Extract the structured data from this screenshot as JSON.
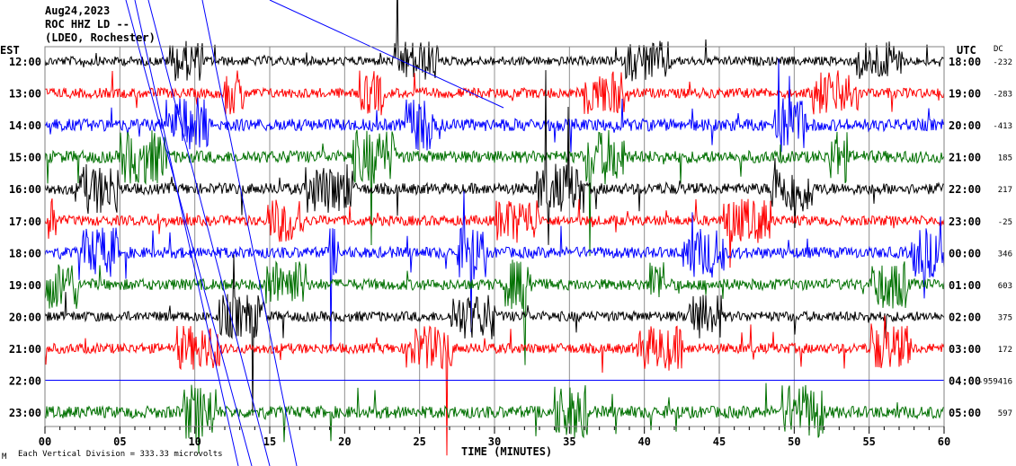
{
  "chart_data": {
    "type": "line",
    "title_lines": [
      "Aug24,2023",
      "ROC HHZ LD --",
      "(LDEO, Rochester)"
    ],
    "left_axis_title": "EST",
    "right_axis_title": "UTC",
    "dc_title": "DC",
    "xlabel": "TIME (MINUTES)",
    "xlim": [
      0,
      60
    ],
    "x_ticks": [
      "00",
      "05",
      "10",
      "15",
      "20",
      "25",
      "30",
      "35",
      "40",
      "45",
      "50",
      "55",
      "60"
    ],
    "scale_note": "Each Vertical Division =  333.33 microvolts",
    "corner_mark": "M",
    "colors": [
      "#000000",
      "#ff0000",
      "#0000ff",
      "#007000"
    ],
    "rows": [
      {
        "est": "12:00",
        "utc": "18:00",
        "dc": "-232",
        "noise": 0.5
      },
      {
        "est": "13:00",
        "utc": "19:00",
        "dc": "-283",
        "noise": 0.6
      },
      {
        "est": "14:00",
        "utc": "20:00",
        "dc": "-413",
        "noise": 0.8
      },
      {
        "est": "15:00",
        "utc": "21:00",
        "dc": "185",
        "noise": 0.8
      },
      {
        "est": "16:00",
        "utc": "22:00",
        "dc": "217",
        "noise": 0.7
      },
      {
        "est": "17:00",
        "utc": "23:00",
        "dc": "-25",
        "noise": 0.6
      },
      {
        "est": "18:00",
        "utc": "00:00",
        "dc": "346",
        "noise": 0.7
      },
      {
        "est": "19:00",
        "utc": "01:00",
        "dc": "603",
        "noise": 0.7
      },
      {
        "est": "20:00",
        "utc": "02:00",
        "dc": "375",
        "noise": 0.6
      },
      {
        "est": "21:00",
        "utc": "03:00",
        "dc": "172",
        "noise": 0.6
      },
      {
        "est": "22:00",
        "utc": "04:00",
        "dc": "-959416",
        "noise": 0.0
      },
      {
        "est": "23:00",
        "utc": "05:00",
        "dc": "597",
        "noise": 0.8
      }
    ]
  }
}
